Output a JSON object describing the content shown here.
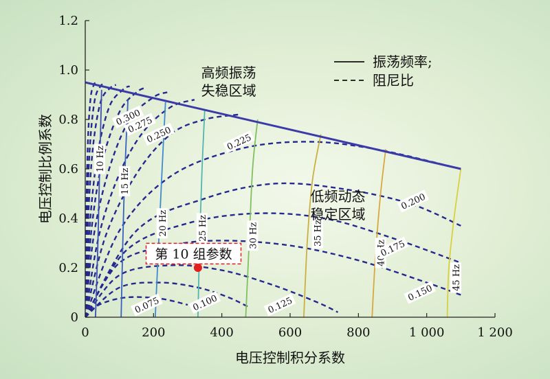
{
  "chart_data": {
    "type": "line",
    "xlabel": "电压控制积分系数",
    "ylabel": "电压控制比例系数",
    "xlim": [
      0,
      1200
    ],
    "ylim": [
      0,
      1.2
    ],
    "xticks": [
      {
        "v": 0,
        "label": "0"
      },
      {
        "v": 200,
        "label": "200"
      },
      {
        "v": 400,
        "label": "400"
      },
      {
        "v": 600,
        "label": "600"
      },
      {
        "v": 800,
        "label": "800"
      },
      {
        "v": 1000,
        "label": "1 000"
      },
      {
        "v": 1200,
        "label": "1 200"
      }
    ],
    "yticks": [
      {
        "v": 0,
        "label": "0"
      },
      {
        "v": 0.2,
        "label": "0.2"
      },
      {
        "v": 0.4,
        "label": "0.4"
      },
      {
        "v": 0.6,
        "label": "0.6"
      },
      {
        "v": 0.8,
        "label": "0.8"
      },
      {
        "v": 1.0,
        "label": "1.0"
      },
      {
        "v": 1.2,
        "label": "1.2"
      }
    ],
    "legend": {
      "placement": "top-right",
      "items": [
        {
          "style": "solid",
          "label": "振荡频率;"
        },
        {
          "style": "dashed",
          "label": "阻尼比"
        }
      ]
    },
    "stability_boundary": {
      "x": [
        0,
        1100
      ],
      "y": [
        0.95,
        0.6
      ]
    },
    "frequency_contours": [
      {
        "label": "10 Hz",
        "color": "#3a4fb0",
        "x": [
          30,
          37,
          42,
          48
        ],
        "y": [
          0.0,
          0.3,
          0.6,
          0.92
        ],
        "label_at": [
          42,
          0.64
        ]
      },
      {
        "label": "15 Hz",
        "color": "#3a60c0",
        "x": [
          105,
          110,
          115,
          125
        ],
        "y": [
          0.0,
          0.3,
          0.55,
          0.88
        ],
        "label_at": [
          115,
          0.55
        ]
      },
      {
        "label": "20 Hz",
        "color": "#3e8ad0",
        "x": [
          205,
          215,
          225,
          235
        ],
        "y": [
          0.0,
          0.3,
          0.6,
          0.87
        ],
        "label_at": [
          225,
          0.38
        ]
      },
      {
        "label": "25 Hz",
        "color": "#4fb7b0",
        "x": [
          330,
          335,
          342,
          350
        ],
        "y": [
          0.0,
          0.3,
          0.6,
          0.84
        ],
        "label_at": [
          342,
          0.36
        ]
      },
      {
        "label": "30 Hz",
        "color": "#7fc060",
        "x": [
          470,
          480,
          490,
          505
        ],
        "y": [
          0.0,
          0.3,
          0.6,
          0.8
        ],
        "label_at": [
          490,
          0.33
        ]
      },
      {
        "label": "35 Hz",
        "color": "#c9b040",
        "x": [
          640,
          650,
          665,
          690
        ],
        "y": [
          0.0,
          0.3,
          0.55,
          0.74
        ],
        "label_at": [
          680,
          0.34
        ]
      },
      {
        "label": "40 Hz",
        "color": "#d8a840",
        "x": [
          840,
          850,
          865,
          880
        ],
        "y": [
          0.0,
          0.25,
          0.5,
          0.68
        ],
        "label_at": [
          865,
          0.26
        ]
      },
      {
        "label": "45 Hz",
        "color": "#d8d040",
        "x": [
          1060,
          1065,
          1080,
          1100
        ],
        "y": [
          0.0,
          0.2,
          0.4,
          0.6
        ],
        "label_at": [
          1085,
          0.16
        ]
      }
    ],
    "damping_contours": [
      {
        "label": "0.075",
        "x": [
          0,
          40,
          120,
          220,
          300
        ],
        "y": [
          0.0,
          0.05,
          0.08,
          0.075,
          0.05
        ],
        "label_at": [
          180,
          0.05
        ]
      },
      {
        "label": "0.100",
        "x": [
          0,
          100,
          220,
          330,
          420,
          480
        ],
        "y": [
          0.0,
          0.12,
          0.14,
          0.12,
          0.08,
          0.04
        ],
        "label_at": [
          350,
          0.06
        ]
      },
      {
        "label": "0.125",
        "x": [
          0,
          100,
          250,
          400,
          550,
          680,
          740
        ],
        "y": [
          0.0,
          0.17,
          0.21,
          0.19,
          0.13,
          0.06,
          0.02
        ],
        "label_at": [
          570,
          0.05
        ]
      },
      {
        "label": "0.150",
        "x": [
          0,
          100,
          250,
          400,
          600,
          800,
          1000,
          1100
        ],
        "y": [
          0.0,
          0.22,
          0.29,
          0.31,
          0.29,
          0.23,
          0.14,
          0.09
        ],
        "label_at": [
          980,
          0.1
        ]
      },
      {
        "label": "0.175",
        "x": [
          0,
          120,
          300,
          500,
          700,
          900,
          1100
        ],
        "y": [
          0.0,
          0.27,
          0.38,
          0.42,
          0.4,
          0.32,
          0.22
        ],
        "label_at": [
          900,
          0.28
        ]
      },
      {
        "label": "0.200",
        "x": [
          0,
          150,
          350,
          550,
          750,
          950,
          1100
        ],
        "y": [
          0.0,
          0.35,
          0.48,
          0.54,
          0.52,
          0.46,
          0.37
        ],
        "label_at": [
          960,
          0.47
        ]
      },
      {
        "label": "0.225",
        "x": [
          0,
          100,
          250,
          450,
          650,
          850,
          1100
        ],
        "y": [
          0.0,
          0.35,
          0.57,
          0.68,
          0.71,
          0.68,
          0.6
        ],
        "label_at": [
          450,
          0.71
        ]
      },
      {
        "label": "0.250",
        "x": [
          0,
          60,
          150,
          250,
          350,
          450
        ],
        "y": [
          0.0,
          0.33,
          0.58,
          0.74,
          0.8,
          0.82
        ],
        "label_at": [
          215,
          0.74
        ]
      },
      {
        "label": "0.275",
        "x": [
          0,
          40,
          100,
          170,
          250,
          320
        ],
        "y": [
          0.0,
          0.33,
          0.58,
          0.75,
          0.85,
          0.88
        ],
        "label_at": [
          160,
          0.78
        ]
      },
      {
        "label": "0.300",
        "x": [
          0,
          25,
          70,
          130,
          200,
          240
        ],
        "y": [
          0.0,
          0.33,
          0.6,
          0.8,
          0.89,
          0.91
        ],
        "label_at": [
          125,
          0.81
        ]
      },
      {
        "label": "",
        "x": [
          0,
          18,
          50,
          100,
          150,
          180
        ],
        "y": [
          0.0,
          0.35,
          0.63,
          0.83,
          0.91,
          0.93
        ]
      },
      {
        "label": "",
        "x": [
          0,
          12,
          35,
          70,
          110,
          130
        ],
        "y": [
          0.0,
          0.35,
          0.65,
          0.85,
          0.92,
          0.935
        ]
      },
      {
        "label": "",
        "x": [
          0,
          8,
          22,
          45,
          75,
          90
        ],
        "y": [
          0.0,
          0.38,
          0.68,
          0.87,
          0.93,
          0.94
        ]
      },
      {
        "label": "",
        "x": [
          0,
          5,
          14,
          28,
          45,
          55
        ],
        "y": [
          0.0,
          0.4,
          0.7,
          0.88,
          0.935,
          0.945
        ]
      },
      {
        "label": "",
        "x": [
          0,
          3,
          8,
          16,
          25,
          30
        ],
        "y": [
          0.0,
          0.42,
          0.72,
          0.89,
          0.94,
          0.948
        ]
      }
    ],
    "region_labels": [
      {
        "lines": [
          "高频振荡",
          "失稳区域"
        ],
        "at": [
          420,
          0.97
        ]
      },
      {
        "lines": [
          "低频动态",
          "稳定区域"
        ],
        "at": [
          740,
          0.47
        ]
      }
    ],
    "marker": {
      "x": 330,
      "y": 0.2,
      "color": "#e02020",
      "label": "第 10 组参数",
      "label_at": [
        450,
        0.26
      ]
    }
  }
}
